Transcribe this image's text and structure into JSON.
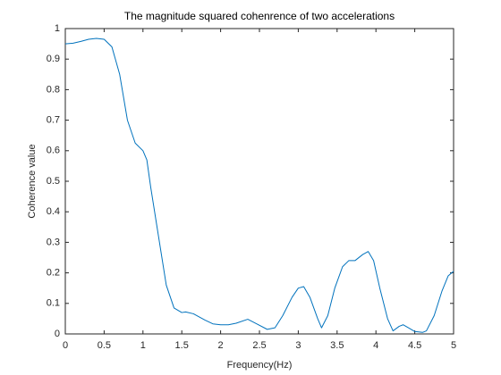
{
  "chart_data": {
    "type": "line",
    "title": "The magnitude squared cohenrence of two accelerations",
    "x_label": "Frequency(Hz)",
    "y_label": "Coherence value",
    "x": [
      0,
      0.1,
      0.2,
      0.3,
      0.4,
      0.5,
      0.6,
      0.7,
      0.8,
      0.9,
      1.0,
      1.05,
      1.1,
      1.2,
      1.3,
      1.4,
      1.5,
      1.55,
      1.65,
      1.8,
      1.9,
      2.0,
      2.1,
      2.2,
      2.35,
      2.45,
      2.6,
      2.7,
      2.8,
      2.92,
      3.0,
      3.07,
      3.15,
      3.25,
      3.3,
      3.38,
      3.47,
      3.57,
      3.65,
      3.73,
      3.83,
      3.9,
      3.97,
      4.05,
      4.15,
      4.22,
      4.3,
      4.35,
      4.42,
      4.5,
      4.6,
      4.65,
      4.75,
      4.85,
      4.93,
      5.0
    ],
    "series": [
      {
        "name": "Coherence",
        "color": "#0072bd",
        "values": [
          0.95,
          0.952,
          0.958,
          0.965,
          0.968,
          0.965,
          0.94,
          0.85,
          0.7,
          0.625,
          0.6,
          0.57,
          0.48,
          0.32,
          0.16,
          0.085,
          0.07,
          0.072,
          0.066,
          0.045,
          0.033,
          0.03,
          0.03,
          0.035,
          0.048,
          0.035,
          0.015,
          0.02,
          0.06,
          0.12,
          0.15,
          0.155,
          0.12,
          0.05,
          0.02,
          0.06,
          0.15,
          0.22,
          0.24,
          0.24,
          0.26,
          0.27,
          0.24,
          0.15,
          0.05,
          0.01,
          0.025,
          0.03,
          0.02,
          0.008,
          0.005,
          0.01,
          0.06,
          0.14,
          0.19,
          0.205
        ]
      }
    ],
    "xlim": [
      0,
      5
    ],
    "ylim": [
      0,
      1
    ],
    "xticks": [
      0,
      0.5,
      1,
      1.5,
      2,
      2.5,
      3,
      3.5,
      4,
      4.5,
      5
    ],
    "yticks": [
      0,
      0.1,
      0.2,
      0.3,
      0.4,
      0.5,
      0.6,
      0.7,
      0.8,
      0.9,
      1
    ],
    "grid": false
  }
}
